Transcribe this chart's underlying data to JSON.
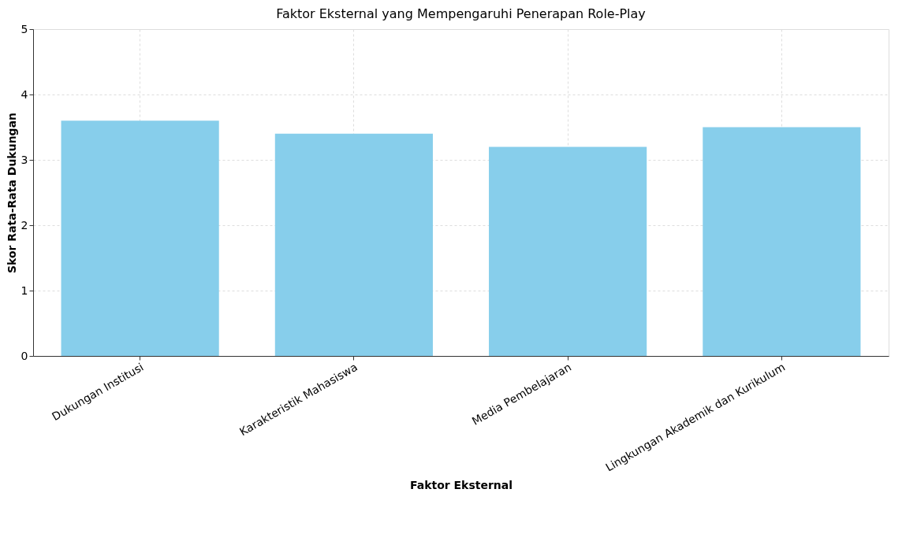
{
  "chart_data": {
    "type": "bar",
    "title": "Faktor Eksternal yang Mempengaruhi Penerapan Role-Play",
    "xlabel": "Faktor Eksternal",
    "ylabel": "Skor Rata-Rata Dukungan",
    "categories": [
      "Dukungan Institusi",
      "Karakteristik Mahasiswa",
      "Media Pembelajaran",
      "Lingkungan Akademik dan Kurikulum"
    ],
    "values": [
      3.6,
      3.4,
      3.2,
      3.5
    ],
    "color": "#87ceeb",
    "ylim": [
      0,
      5
    ],
    "yticks": [
      0,
      1,
      2,
      3,
      4,
      5
    ],
    "grid": true
  }
}
